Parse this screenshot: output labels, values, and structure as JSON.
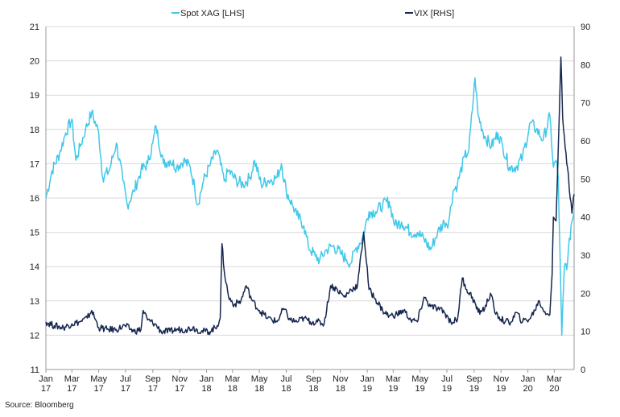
{
  "chart_data": {
    "type": "line",
    "title": "",
    "source_text": "Source: Bloomberg",
    "x_range": [
      "2017-01-01",
      "2020-04-15"
    ],
    "x_ticks": [
      {
        "date": "2017-01-01",
        "month": "Jan",
        "year": "17"
      },
      {
        "date": "2017-03-01",
        "month": "Mar",
        "year": "17"
      },
      {
        "date": "2017-05-01",
        "month": "May",
        "year": "17"
      },
      {
        "date": "2017-07-01",
        "month": "Jul",
        "year": "17"
      },
      {
        "date": "2017-09-01",
        "month": "Sep",
        "year": "17"
      },
      {
        "date": "2017-11-01",
        "month": "Nov",
        "year": "17"
      },
      {
        "date": "2018-01-01",
        "month": "Jan",
        "year": "18"
      },
      {
        "date": "2018-03-01",
        "month": "Mar",
        "year": "18"
      },
      {
        "date": "2018-05-01",
        "month": "May",
        "year": "18"
      },
      {
        "date": "2018-07-01",
        "month": "Jul",
        "year": "18"
      },
      {
        "date": "2018-09-01",
        "month": "Sep",
        "year": "18"
      },
      {
        "date": "2018-11-01",
        "month": "Nov",
        "year": "18"
      },
      {
        "date": "2019-01-01",
        "month": "Jan",
        "year": "19"
      },
      {
        "date": "2019-03-01",
        "month": "Mar",
        "year": "19"
      },
      {
        "date": "2019-05-01",
        "month": "May",
        "year": "19"
      },
      {
        "date": "2019-07-01",
        "month": "Jul",
        "year": "19"
      },
      {
        "date": "2019-09-01",
        "month": "Sep",
        "year": "19"
      },
      {
        "date": "2019-11-01",
        "month": "Nov",
        "year": "19"
      },
      {
        "date": "2020-01-01",
        "month": "Jan",
        "year": "20"
      },
      {
        "date": "2020-03-01",
        "month": "Mar",
        "year": "20"
      }
    ],
    "y_left": {
      "min": 11,
      "max": 21,
      "ticks": [
        11,
        12,
        13,
        14,
        15,
        16,
        17,
        18,
        19,
        20,
        21
      ]
    },
    "y_right": {
      "min": 0,
      "max": 90,
      "ticks": [
        0,
        10,
        20,
        30,
        40,
        50,
        60,
        70,
        80,
        90
      ]
    },
    "grid": "horizontal",
    "legend_position": "top",
    "series": [
      {
        "name": "Spot XAG [LHS]",
        "axis": "left",
        "color": "#3fc8ea",
        "points": [
          [
            "2017-01-01",
            16.0
          ],
          [
            "2017-01-15",
            16.8
          ],
          [
            "2017-02-01",
            17.3
          ],
          [
            "2017-02-15",
            17.9
          ],
          [
            "2017-03-01",
            18.3
          ],
          [
            "2017-03-10",
            17.1
          ],
          [
            "2017-03-20",
            17.5
          ],
          [
            "2017-04-01",
            18.0
          ],
          [
            "2017-04-15",
            18.5
          ],
          [
            "2017-05-01",
            17.9
          ],
          [
            "2017-05-10",
            16.6
          ],
          [
            "2017-05-25",
            16.8
          ],
          [
            "2017-06-10",
            17.6
          ],
          [
            "2017-06-25",
            16.5
          ],
          [
            "2017-07-05",
            15.8
          ],
          [
            "2017-07-20",
            16.2
          ],
          [
            "2017-08-05",
            16.8
          ],
          [
            "2017-08-20",
            17.0
          ],
          [
            "2017-09-01",
            17.6
          ],
          [
            "2017-09-08",
            18.1
          ],
          [
            "2017-09-25",
            17.0
          ],
          [
            "2017-10-10",
            17.1
          ],
          [
            "2017-10-25",
            16.9
          ],
          [
            "2017-11-10",
            17.1
          ],
          [
            "2017-11-25",
            16.9
          ],
          [
            "2017-12-05",
            16.3
          ],
          [
            "2017-12-12",
            15.8
          ],
          [
            "2017-12-25",
            16.5
          ],
          [
            "2018-01-10",
            17.0
          ],
          [
            "2018-01-25",
            17.4
          ],
          [
            "2018-02-10",
            16.5
          ],
          [
            "2018-02-20",
            16.8
          ],
          [
            "2018-03-10",
            16.5
          ],
          [
            "2018-03-25",
            16.4
          ],
          [
            "2018-04-10",
            16.6
          ],
          [
            "2018-04-20",
            17.1
          ],
          [
            "2018-05-05",
            16.4
          ],
          [
            "2018-05-20",
            16.5
          ],
          [
            "2018-06-10",
            16.6
          ],
          [
            "2018-06-20",
            17.0
          ],
          [
            "2018-07-01",
            16.2
          ],
          [
            "2018-07-15",
            15.8
          ],
          [
            "2018-07-25",
            15.5
          ],
          [
            "2018-08-10",
            15.2
          ],
          [
            "2018-08-20",
            14.6
          ],
          [
            "2018-09-05",
            14.3
          ],
          [
            "2018-09-15",
            14.2
          ],
          [
            "2018-10-01",
            14.5
          ],
          [
            "2018-10-15",
            14.6
          ],
          [
            "2018-11-01",
            14.4
          ],
          [
            "2018-11-15",
            14.2
          ],
          [
            "2018-11-25",
            14.1
          ],
          [
            "2018-12-05",
            14.5
          ],
          [
            "2018-12-20",
            14.8
          ],
          [
            "2019-01-05",
            15.6
          ],
          [
            "2019-01-20",
            15.6
          ],
          [
            "2019-02-05",
            15.8
          ],
          [
            "2019-02-20",
            15.9
          ],
          [
            "2019-03-05",
            15.2
          ],
          [
            "2019-03-20",
            15.3
          ],
          [
            "2019-04-10",
            15.0
          ],
          [
            "2019-04-25",
            15.0
          ],
          [
            "2019-05-10",
            14.8
          ],
          [
            "2019-05-25",
            14.5
          ],
          [
            "2019-06-10",
            15.0
          ],
          [
            "2019-06-25",
            15.3
          ],
          [
            "2019-07-05",
            15.3
          ],
          [
            "2019-07-15",
            16.2
          ],
          [
            "2019-07-25",
            16.4
          ],
          [
            "2019-08-10",
            17.2
          ],
          [
            "2019-08-20",
            17.4
          ],
          [
            "2019-09-03",
            19.5
          ],
          [
            "2019-09-10",
            18.4
          ],
          [
            "2019-09-25",
            17.8
          ],
          [
            "2019-10-10",
            17.5
          ],
          [
            "2019-10-25",
            17.9
          ],
          [
            "2019-11-05",
            17.5
          ],
          [
            "2019-11-20",
            16.9
          ],
          [
            "2019-12-05",
            16.9
          ],
          [
            "2019-12-20",
            17.2
          ],
          [
            "2020-01-07",
            18.2
          ],
          [
            "2020-01-20",
            18.0
          ],
          [
            "2020-02-05",
            17.7
          ],
          [
            "2020-02-20",
            18.4
          ],
          [
            "2020-02-28",
            16.9
          ],
          [
            "2020-03-05",
            17.1
          ],
          [
            "2020-03-10",
            16.6
          ],
          [
            "2020-03-12",
            15.4
          ],
          [
            "2020-03-18",
            12.0
          ],
          [
            "2020-03-24",
            14.0
          ],
          [
            "2020-03-31",
            14.1
          ],
          [
            "2020-04-08",
            15.2
          ],
          [
            "2020-04-15",
            15.6
          ]
        ]
      },
      {
        "name": "VIX [RHS]",
        "axis": "right",
        "color": "#15264f",
        "points": [
          [
            "2017-01-01",
            12.5
          ],
          [
            "2017-01-20",
            11.5
          ],
          [
            "2017-02-10",
            11.0
          ],
          [
            "2017-03-01",
            12.0
          ],
          [
            "2017-03-20",
            12.5
          ],
          [
            "2017-04-05",
            13.5
          ],
          [
            "2017-04-15",
            15.5
          ],
          [
            "2017-05-01",
            11.0
          ],
          [
            "2017-05-20",
            10.5
          ],
          [
            "2017-06-10",
            10.5
          ],
          [
            "2017-06-30",
            11.5
          ],
          [
            "2017-07-20",
            10.0
          ],
          [
            "2017-08-05",
            10.5
          ],
          [
            "2017-08-10",
            15.5
          ],
          [
            "2017-08-20",
            13.0
          ],
          [
            "2017-09-05",
            12.0
          ],
          [
            "2017-09-20",
            10.0
          ],
          [
            "2017-10-10",
            10.0
          ],
          [
            "2017-10-25",
            10.5
          ],
          [
            "2017-11-15",
            10.5
          ],
          [
            "2017-12-01",
            11.0
          ],
          [
            "2017-12-20",
            10.0
          ],
          [
            "2018-01-10",
            10.0
          ],
          [
            "2018-01-25",
            11.5
          ],
          [
            "2018-02-01",
            13.5
          ],
          [
            "2018-02-05",
            33.0
          ],
          [
            "2018-02-10",
            26.0
          ],
          [
            "2018-02-20",
            19.0
          ],
          [
            "2018-03-05",
            17.0
          ],
          [
            "2018-03-20",
            18.0
          ],
          [
            "2018-04-01",
            22.0
          ],
          [
            "2018-04-15",
            18.0
          ],
          [
            "2018-05-01",
            15.5
          ],
          [
            "2018-05-20",
            13.5
          ],
          [
            "2018-06-10",
            12.5
          ],
          [
            "2018-06-25",
            16.0
          ],
          [
            "2018-07-10",
            13.0
          ],
          [
            "2018-07-25",
            12.5
          ],
          [
            "2018-08-10",
            13.5
          ],
          [
            "2018-08-25",
            12.5
          ],
          [
            "2018-09-10",
            12.5
          ],
          [
            "2018-09-25",
            12.0
          ],
          [
            "2018-10-10",
            22.0
          ],
          [
            "2018-10-25",
            21.0
          ],
          [
            "2018-11-10",
            19.0
          ],
          [
            "2018-11-25",
            21.0
          ],
          [
            "2018-12-10",
            22.0
          ],
          [
            "2018-12-24",
            36.0
          ],
          [
            "2019-01-05",
            21.0
          ],
          [
            "2019-01-20",
            18.5
          ],
          [
            "2019-02-05",
            15.5
          ],
          [
            "2019-02-20",
            14.0
          ],
          [
            "2019-03-10",
            14.5
          ],
          [
            "2019-03-25",
            15.5
          ],
          [
            "2019-04-10",
            13.0
          ],
          [
            "2019-04-25",
            12.5
          ],
          [
            "2019-05-10",
            19.0
          ],
          [
            "2019-05-25",
            16.5
          ],
          [
            "2019-06-10",
            16.0
          ],
          [
            "2019-06-25",
            15.0
          ],
          [
            "2019-07-10",
            12.5
          ],
          [
            "2019-07-25",
            13.0
          ],
          [
            "2019-08-05",
            24.0
          ],
          [
            "2019-08-15",
            21.0
          ],
          [
            "2019-08-28",
            19.0
          ],
          [
            "2019-09-10",
            15.0
          ],
          [
            "2019-09-25",
            16.0
          ],
          [
            "2019-10-08",
            20.0
          ],
          [
            "2019-10-20",
            14.5
          ],
          [
            "2019-11-10",
            12.5
          ],
          [
            "2019-11-25",
            12.5
          ],
          [
            "2019-12-05",
            15.0
          ],
          [
            "2019-12-20",
            12.5
          ],
          [
            "2020-01-07",
            13.5
          ],
          [
            "2020-01-27",
            18.0
          ],
          [
            "2020-02-05",
            15.5
          ],
          [
            "2020-02-20",
            14.5
          ],
          [
            "2020-02-25",
            25.0
          ],
          [
            "2020-02-28",
            40.0
          ],
          [
            "2020-03-05",
            39.0
          ],
          [
            "2020-03-09",
            54.0
          ],
          [
            "2020-03-16",
            82.0
          ],
          [
            "2020-03-20",
            66.0
          ],
          [
            "2020-03-24",
            61.0
          ],
          [
            "2020-03-31",
            53.0
          ],
          [
            "2020-04-06",
            45.0
          ],
          [
            "2020-04-10",
            41.0
          ],
          [
            "2020-04-15",
            46.0
          ]
        ]
      }
    ]
  }
}
